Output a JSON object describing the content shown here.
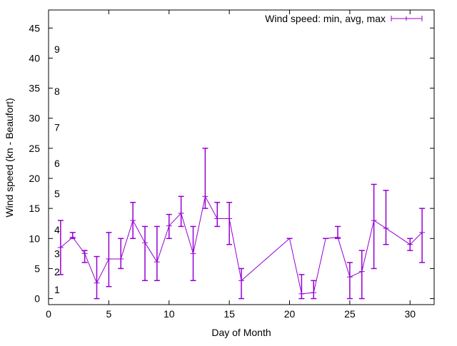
{
  "chart_data": {
    "type": "line",
    "title": "",
    "xlabel": "Day of Month",
    "ylabel": "Wind speed (kn - Beaufort)",
    "xlim": [
      0,
      32
    ],
    "ylim": [
      -1,
      48
    ],
    "xticks": [
      0,
      5,
      10,
      15,
      20,
      25,
      30
    ],
    "yticks": [
      0,
      5,
      10,
      15,
      20,
      25,
      30,
      35,
      40,
      45
    ],
    "grid": false,
    "legend": {
      "position": "top-right",
      "label": "Wind speed: min, avg, max"
    },
    "series_color": "#9400d3",
    "beaufort_labels": [
      {
        "label": "1",
        "kn": 1
      },
      {
        "label": "2",
        "kn": 4
      },
      {
        "label": "3",
        "kn": 7
      },
      {
        "label": "4",
        "kn": 11
      },
      {
        "label": "5",
        "kn": 17
      },
      {
        "label": "6",
        "kn": 22
      },
      {
        "label": "7",
        "kn": 28
      },
      {
        "label": "8",
        "kn": 34
      },
      {
        "label": "9",
        "kn": 41
      }
    ],
    "series": [
      {
        "name": "Wind speed: min, avg, max",
        "points": [
          {
            "day": 1,
            "avg": 8.5,
            "min": 4,
            "max": 13
          },
          {
            "day": 2,
            "avg": 10.2,
            "min": 10,
            "max": 11
          },
          {
            "day": 3,
            "avg": 7.5,
            "min": 6,
            "max": 8
          },
          {
            "day": 4,
            "avg": 2.6,
            "min": 0,
            "max": 7
          },
          {
            "day": 5,
            "avg": 6.6,
            "min": 2,
            "max": 11
          },
          {
            "day": 6,
            "avg": 6.6,
            "min": 5,
            "max": 10
          },
          {
            "day": 7,
            "avg": 13,
            "min": 10,
            "max": 16
          },
          {
            "day": 8,
            "avg": 9.3,
            "min": 3,
            "max": 12
          },
          {
            "day": 9,
            "avg": 6.1,
            "min": 3,
            "max": 12
          },
          {
            "day": 10,
            "avg": 12.1,
            "min": 10,
            "max": 14
          },
          {
            "day": 11,
            "avg": 14.2,
            "min": 12,
            "max": 17
          },
          {
            "day": 12,
            "avg": 7.5,
            "min": 3,
            "max": 12
          },
          {
            "day": 13,
            "avg": 17,
            "min": 15,
            "max": 25
          },
          {
            "day": 14,
            "avg": 13.3,
            "min": 12,
            "max": 16
          },
          {
            "day": 15,
            "avg": 13.3,
            "min": 9,
            "max": 16
          },
          {
            "day": 16,
            "avg": 3,
            "min": 0,
            "max": 5
          },
          {
            "day": 20,
            "avg": 10,
            "min": 10,
            "max": 10
          },
          {
            "day": 21,
            "avg": 0.8,
            "min": 0,
            "max": 4
          },
          {
            "day": 22,
            "avg": 1,
            "min": 0,
            "max": 3
          },
          {
            "day": 23,
            "avg": 10,
            "min": 10,
            "max": 10
          },
          {
            "day": 24,
            "avg": 10.2,
            "min": 10,
            "max": 12
          },
          {
            "day": 25,
            "avg": 3.6,
            "min": 0,
            "max": 6
          },
          {
            "day": 26,
            "avg": 4.5,
            "min": 0,
            "max": 8
          },
          {
            "day": 27,
            "avg": 13,
            "min": 5,
            "max": 19
          },
          {
            "day": 28,
            "avg": 11.7,
            "min": 9,
            "max": 18
          },
          {
            "day": 30,
            "avg": 9,
            "min": 8,
            "max": 10
          },
          {
            "day": 31,
            "avg": 11,
            "min": 6,
            "max": 15
          }
        ]
      }
    ]
  }
}
